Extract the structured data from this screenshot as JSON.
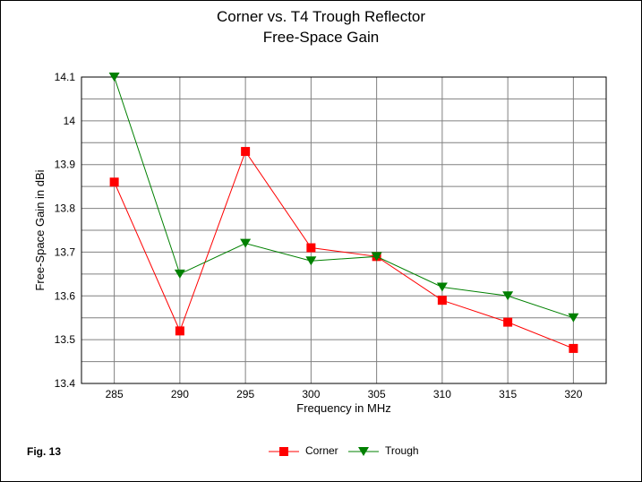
{
  "figure_label": "Fig. 13",
  "colors": {
    "corner": "#ff0000",
    "trough": "#008000",
    "grid": "#808080",
    "axis": "#000000"
  },
  "chart_data": {
    "type": "line",
    "title": "Corner vs. T4 Trough Reflector",
    "subtitle": "Free-Space Gain",
    "xlabel": "Frequency in MHz",
    "ylabel": "Free-Space Gain in dBi",
    "x": [
      285,
      290,
      295,
      300,
      305,
      310,
      315,
      320
    ],
    "x_tick_labels": [
      "285",
      "290",
      "295",
      "300",
      "305",
      "310",
      "315",
      "320"
    ],
    "y_tick_labels": [
      "14.1",
      "14",
      "13.9",
      "13.8",
      "13.7",
      "13.6",
      "13.5",
      "13.4"
    ],
    "ylim": [
      13.4,
      14.1
    ],
    "grid": true,
    "legend_position": "bottom",
    "series": [
      {
        "name": "Corner",
        "marker": "square",
        "values": [
          13.86,
          13.52,
          13.93,
          13.71,
          13.69,
          13.59,
          13.54,
          13.48
        ]
      },
      {
        "name": "Trough",
        "marker": "triangle-down",
        "values": [
          14.1,
          13.65,
          13.72,
          13.68,
          13.69,
          13.62,
          13.6,
          13.55
        ]
      }
    ]
  }
}
